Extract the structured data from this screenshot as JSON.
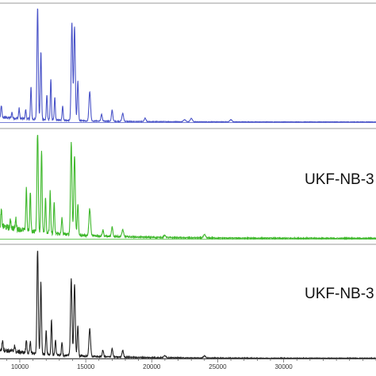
{
  "chart_data": {
    "type": "line",
    "title": "",
    "xlabel": "",
    "ylabel": "",
    "xlim": [
      8500,
      37000
    ],
    "ylim": [
      0,
      1
    ],
    "x_ticks": [
      10000,
      15000,
      20000,
      25000,
      30000
    ],
    "x_tick_labels": [
      "10000",
      "15000",
      "20000",
      "25000",
      "30000"
    ],
    "grid": false,
    "legend": "none",
    "panels": [
      {
        "name": "",
        "color": "#4a54c8",
        "baseline": 0.02,
        "noise": 0.012,
        "peaks": [
          {
            "x": 8600,
            "height": 0.1,
            "width": 40
          },
          {
            "x": 9400,
            "height": 0.05,
            "width": 40
          },
          {
            "x": 9950,
            "height": 0.09,
            "width": 40
          },
          {
            "x": 10450,
            "height": 0.08,
            "width": 40
          },
          {
            "x": 10850,
            "height": 0.28,
            "width": 40
          },
          {
            "x": 11350,
            "height": 1.0,
            "width": 50
          },
          {
            "x": 11600,
            "height": 0.6,
            "width": 45
          },
          {
            "x": 12050,
            "height": 0.22,
            "width": 40
          },
          {
            "x": 12350,
            "height": 0.36,
            "width": 40
          },
          {
            "x": 12650,
            "height": 0.2,
            "width": 40
          },
          {
            "x": 13250,
            "height": 0.13,
            "width": 40
          },
          {
            "x": 13950,
            "height": 0.86,
            "width": 55
          },
          {
            "x": 14150,
            "height": 0.83,
            "width": 55
          },
          {
            "x": 14400,
            "height": 0.35,
            "width": 45
          },
          {
            "x": 15300,
            "height": 0.26,
            "width": 60
          },
          {
            "x": 16200,
            "height": 0.06,
            "width": 50
          },
          {
            "x": 17000,
            "height": 0.1,
            "width": 50
          },
          {
            "x": 17800,
            "height": 0.07,
            "width": 60
          },
          {
            "x": 19500,
            "height": 0.03,
            "width": 60
          },
          {
            "x": 22500,
            "height": 0.02,
            "width": 80
          },
          {
            "x": 23000,
            "height": 0.03,
            "width": 80
          },
          {
            "x": 26000,
            "height": 0.02,
            "width": 80
          }
        ]
      },
      {
        "name": "UKF-NB-3",
        "color": "#3fb82c",
        "baseline": 0.06,
        "noise": 0.03,
        "peaks": [
          {
            "x": 8600,
            "height": 0.15,
            "width": 40
          },
          {
            "x": 9300,
            "height": 0.08,
            "width": 40
          },
          {
            "x": 9700,
            "height": 0.1,
            "width": 40
          },
          {
            "x": 10500,
            "height": 0.42,
            "width": 40
          },
          {
            "x": 10800,
            "height": 0.38,
            "width": 40
          },
          {
            "x": 11350,
            "height": 1.0,
            "width": 50
          },
          {
            "x": 11650,
            "height": 0.8,
            "width": 45
          },
          {
            "x": 11950,
            "height": 0.35,
            "width": 40
          },
          {
            "x": 12300,
            "height": 0.4,
            "width": 40
          },
          {
            "x": 12600,
            "height": 0.3,
            "width": 40
          },
          {
            "x": 13200,
            "height": 0.16,
            "width": 40
          },
          {
            "x": 13900,
            "height": 0.89,
            "width": 55
          },
          {
            "x": 14150,
            "height": 0.77,
            "width": 55
          },
          {
            "x": 14400,
            "height": 0.3,
            "width": 45
          },
          {
            "x": 15300,
            "height": 0.26,
            "width": 60
          },
          {
            "x": 16300,
            "height": 0.06,
            "width": 50
          },
          {
            "x": 17000,
            "height": 0.09,
            "width": 50
          },
          {
            "x": 17800,
            "height": 0.07,
            "width": 60
          },
          {
            "x": 21000,
            "height": 0.02,
            "width": 80
          },
          {
            "x": 24000,
            "height": 0.03,
            "width": 80
          }
        ]
      },
      {
        "name": "UKF-NB-3",
        "color": "#222222",
        "baseline": 0.04,
        "noise": 0.02,
        "peaks": [
          {
            "x": 8700,
            "height": 0.1,
            "width": 40
          },
          {
            "x": 9600,
            "height": 0.06,
            "width": 40
          },
          {
            "x": 10500,
            "height": 0.12,
            "width": 40
          },
          {
            "x": 10800,
            "height": 0.1,
            "width": 40
          },
          {
            "x": 11350,
            "height": 1.0,
            "width": 50
          },
          {
            "x": 11600,
            "height": 0.67,
            "width": 45
          },
          {
            "x": 12000,
            "height": 0.22,
            "width": 40
          },
          {
            "x": 12400,
            "height": 0.32,
            "width": 40
          },
          {
            "x": 12700,
            "height": 0.14,
            "width": 40
          },
          {
            "x": 13200,
            "height": 0.12,
            "width": 40
          },
          {
            "x": 13900,
            "height": 0.72,
            "width": 55
          },
          {
            "x": 14150,
            "height": 0.66,
            "width": 55
          },
          {
            "x": 14400,
            "height": 0.28,
            "width": 45
          },
          {
            "x": 15300,
            "height": 0.26,
            "width": 60
          },
          {
            "x": 16300,
            "height": 0.06,
            "width": 50
          },
          {
            "x": 17000,
            "height": 0.08,
            "width": 50
          },
          {
            "x": 17800,
            "height": 0.06,
            "width": 60
          },
          {
            "x": 21000,
            "height": 0.02,
            "width": 80
          },
          {
            "x": 24000,
            "height": 0.02,
            "width": 80
          }
        ]
      }
    ]
  }
}
